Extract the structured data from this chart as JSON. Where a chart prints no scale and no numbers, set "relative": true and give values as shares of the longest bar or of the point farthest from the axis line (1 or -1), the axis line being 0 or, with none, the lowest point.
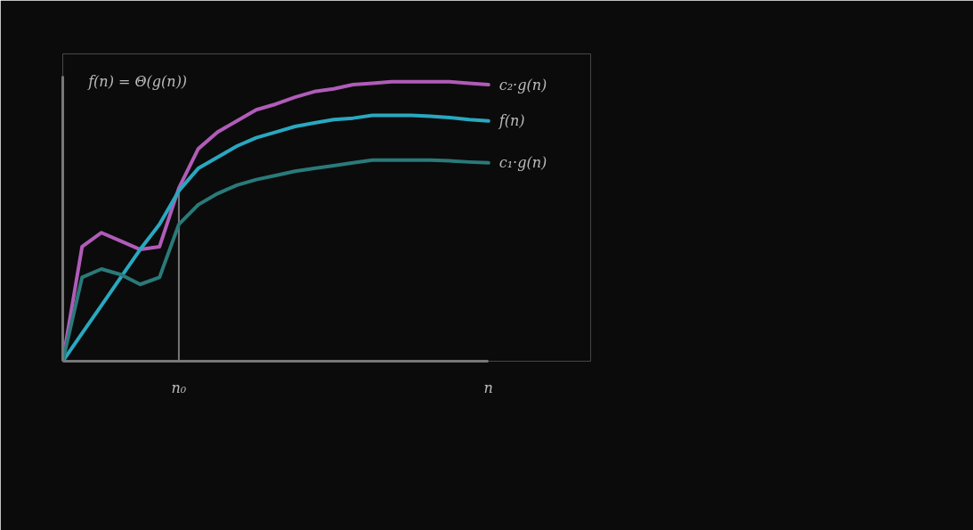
{
  "chart_data": {
    "type": "line",
    "relative": true,
    "annotations": [
      "f(n) = Θ(g(n))"
    ],
    "categories": [
      null,
      null,
      null,
      null,
      null,
      null,
      "n₀",
      null,
      null,
      null,
      null,
      null,
      null,
      null,
      null,
      null,
      null,
      null,
      null,
      null,
      null,
      null,
      "n"
    ],
    "ref_lines": [
      {
        "axis": "x",
        "value": "n₀",
        "color": "#777777"
      }
    ],
    "series": [
      {
        "name": "c₂·g(n)",
        "color": "#b05cb8",
        "values": [
          0,
          0.41,
          0.46,
          0.43,
          0.4,
          0.41,
          0.62,
          0.76,
          0.82,
          0.86,
          0.9,
          0.92,
          0.945,
          0.965,
          0.975,
          0.99,
          0.995,
          1,
          1,
          1,
          1,
          0.995,
          0.99
        ]
      },
      {
        "name": "f(n)",
        "color": "#29a8c0",
        "values": [
          0,
          0.1,
          0.2,
          0.3,
          0.4,
          0.49,
          0.61,
          0.69,
          0.73,
          0.77,
          0.8,
          0.82,
          0.84,
          0.853,
          0.865,
          0.87,
          0.88,
          0.88,
          0.88,
          0.877,
          0.872,
          0.865,
          0.86
        ]
      },
      {
        "name": "c₁·g(n)",
        "color": "#2a7a7a",
        "values": [
          0,
          0.3,
          0.33,
          0.31,
          0.275,
          0.3,
          0.49,
          0.56,
          0.6,
          0.63,
          0.65,
          0.665,
          0.68,
          0.69,
          0.7,
          0.71,
          0.72,
          0.72,
          0.72,
          0.72,
          0.717,
          0.713,
          0.71
        ]
      }
    ]
  }
}
